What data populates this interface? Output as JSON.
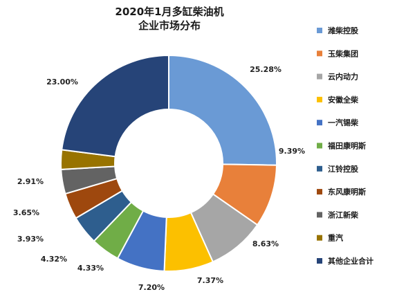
{
  "chart_data": {
    "type": "pie",
    "style": "doughnut",
    "title": "2020年1月多缸柴油机",
    "subtitle": "企业市场分布",
    "legend_position": "right",
    "categories": [
      "潍柴控股",
      "玉柴集团",
      "云内动力",
      "安徽全柴",
      "一汽锡柴",
      "福田康明斯",
      "江铃控股",
      "东风康明斯",
      "浙江新柴",
      "重汽",
      "其他企业合计"
    ],
    "values": [
      25.28,
      9.39,
      8.63,
      7.37,
      7.2,
      4.33,
      4.32,
      3.93,
      3.65,
      2.91,
      23.0
    ],
    "value_labels": [
      "25.28%",
      "9.39%",
      "8.63%",
      "7.37%",
      "7.20%",
      "4.33%",
      "4.32%",
      "3.93%",
      "3.65%",
      "2.91%",
      "23.00%"
    ],
    "colors": [
      "#6a9ad5",
      "#e8803a",
      "#a6a6a6",
      "#fcc000",
      "#4472c4",
      "#70ad47",
      "#2e5e8e",
      "#9e480e",
      "#636363",
      "#987300",
      "#264478"
    ]
  }
}
